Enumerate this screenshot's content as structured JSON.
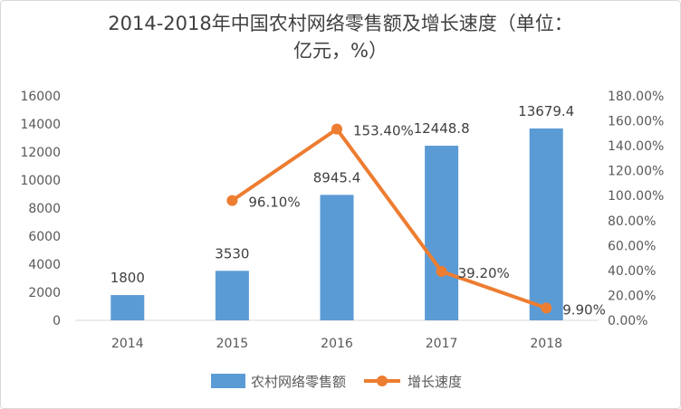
{
  "chart_data": {
    "type": "bar",
    "title_line1": "2014-2018年中国农村网络零售额及增长速度（单位：",
    "title_line2": "亿元，%）",
    "categories": [
      "2014",
      "2015",
      "2016",
      "2017",
      "2018"
    ],
    "series": [
      {
        "name": "农村网络零售额",
        "type": "bar",
        "axis": "left",
        "color": "#5b9bd5",
        "values": [
          1800,
          3530,
          8945.4,
          12448.8,
          13679.4
        ],
        "labels": [
          "1800",
          "3530",
          "8945.4",
          "12448.8",
          "13679.4"
        ]
      },
      {
        "name": "增长速度",
        "type": "line",
        "axis": "right",
        "color": "#ed7d31",
        "values": [
          null,
          96.1,
          153.4,
          39.2,
          9.9
        ],
        "labels": [
          "",
          "96.10%",
          "153.40%",
          "39.20%",
          "9.90%"
        ]
      }
    ],
    "left_axis": {
      "ylim": [
        0,
        16000
      ],
      "ticks": [
        "0",
        "2000",
        "4000",
        "6000",
        "8000",
        "10000",
        "12000",
        "14000",
        "16000"
      ]
    },
    "right_axis": {
      "ylim": [
        0,
        180
      ],
      "ticks": [
        "0.00%",
        "20.00%",
        "40.00%",
        "60.00%",
        "80.00%",
        "100.00%",
        "120.00%",
        "140.00%",
        "160.00%",
        "180.00%"
      ]
    },
    "grid": false,
    "legend_position": "bottom"
  }
}
